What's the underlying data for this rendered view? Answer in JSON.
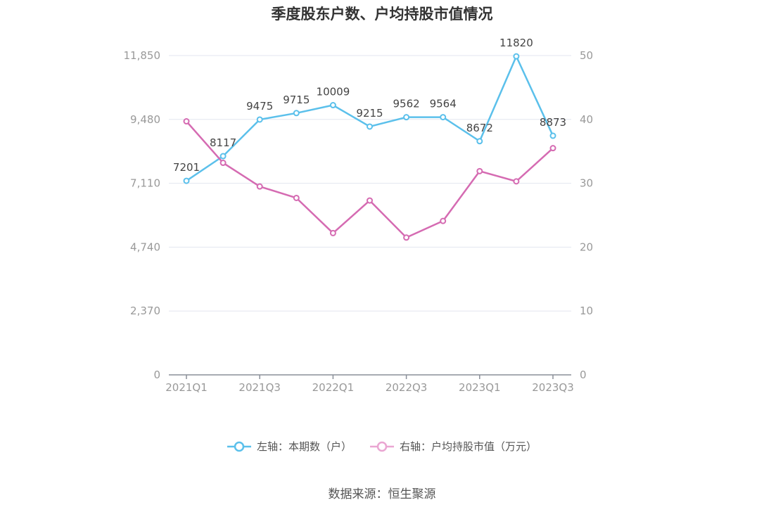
{
  "chart_data": {
    "type": "line",
    "title": "季度股东户数、户均持股市值情况",
    "categories": [
      "2021Q1",
      "2021Q2",
      "2021Q3",
      "2021Q4",
      "2022Q1",
      "2022Q2",
      "2022Q3",
      "2022Q4",
      "2023Q1",
      "2023Q2",
      "2023Q3"
    ],
    "x_tick_labels": [
      "2021Q1",
      "2021Q3",
      "2022Q1",
      "2022Q3",
      "2023Q1",
      "2023Q3"
    ],
    "left_axis": {
      "ylim": [
        0,
        11850
      ],
      "ticks": [
        "0",
        "2,370",
        "4,740",
        "7,110",
        "9,480",
        "11,850"
      ]
    },
    "right_axis": {
      "ylim": [
        0,
        50
      ],
      "ticks": [
        "0",
        "10",
        "20",
        "30",
        "40",
        "50"
      ]
    },
    "series": [
      {
        "name": "左轴：本期数（户）",
        "axis": "left",
        "color": "#5bc0eb",
        "values": [
          7201,
          8117,
          9475,
          9715,
          10009,
          9215,
          9562,
          9564,
          8672,
          11820,
          8873
        ],
        "labels": [
          "7201",
          "8117",
          "9475",
          "9715",
          "10009",
          "9215",
          "9562",
          "9564",
          "8672",
          "11820",
          "8873"
        ]
      },
      {
        "name": "右轴：户均持股市值（万元）",
        "axis": "right",
        "color": "#d56bb2",
        "values": [
          39.7,
          33.2,
          29.5,
          27.7,
          22.2,
          27.3,
          21.5,
          24.1,
          31.9,
          30.3,
          35.5
        ]
      }
    ],
    "grid": true,
    "legend_position": "bottom"
  },
  "source": "数据来源：恒生聚源"
}
